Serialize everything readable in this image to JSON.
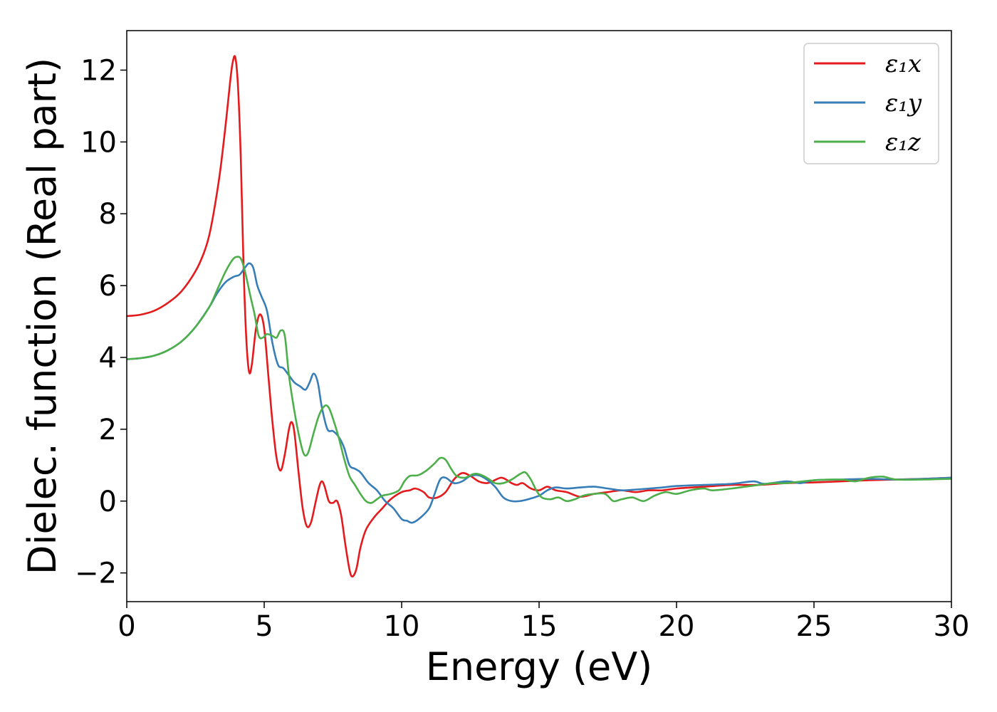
{
  "chart_data": {
    "type": "line",
    "title": "",
    "xlabel": "Energy (eV)",
    "ylabel": "Dielec. function (Real part)",
    "xlim": [
      0,
      30
    ],
    "ylim": [
      -2.8,
      13.1
    ],
    "xticks": [
      0,
      5,
      10,
      15,
      20,
      25,
      30
    ],
    "yticks": [
      -2,
      0,
      2,
      4,
      6,
      8,
      10,
      12
    ],
    "grid": false,
    "legend_position": "top-right",
    "series": [
      {
        "name": "ε₁x",
        "color": "#e41a1c",
        "points": [
          [
            0,
            5.15
          ],
          [
            0.5,
            5.19
          ],
          [
            1.0,
            5.3
          ],
          [
            1.5,
            5.52
          ],
          [
            2.0,
            5.85
          ],
          [
            2.5,
            6.4
          ],
          [
            2.8,
            6.9
          ],
          [
            3.0,
            7.4
          ],
          [
            3.2,
            8.2
          ],
          [
            3.4,
            9.2
          ],
          [
            3.6,
            10.5
          ],
          [
            3.75,
            11.6
          ],
          [
            3.85,
            12.2
          ],
          [
            3.95,
            12.35
          ],
          [
            4.05,
            11.5
          ],
          [
            4.15,
            9.5
          ],
          [
            4.25,
            6.5
          ],
          [
            4.35,
            4.5
          ],
          [
            4.45,
            3.6
          ],
          [
            4.55,
            3.8
          ],
          [
            4.7,
            4.8
          ],
          [
            4.85,
            5.2
          ],
          [
            5.0,
            4.8
          ],
          [
            5.15,
            3.5
          ],
          [
            5.3,
            2.2
          ],
          [
            5.45,
            1.2
          ],
          [
            5.6,
            0.85
          ],
          [
            5.75,
            1.3
          ],
          [
            5.9,
            2.0
          ],
          [
            6.0,
            2.2
          ],
          [
            6.1,
            1.9
          ],
          [
            6.25,
            0.8
          ],
          [
            6.4,
            -0.2
          ],
          [
            6.55,
            -0.7
          ],
          [
            6.7,
            -0.6
          ],
          [
            6.85,
            -0.1
          ],
          [
            7.0,
            0.4
          ],
          [
            7.1,
            0.55
          ],
          [
            7.2,
            0.4
          ],
          [
            7.35,
            0.0
          ],
          [
            7.5,
            -0.05
          ],
          [
            7.65,
            0.0
          ],
          [
            7.8,
            -0.4
          ],
          [
            7.95,
            -1.2
          ],
          [
            8.1,
            -1.9
          ],
          [
            8.2,
            -2.1
          ],
          [
            8.35,
            -1.9
          ],
          [
            8.5,
            -1.3
          ],
          [
            8.7,
            -0.8
          ],
          [
            9.0,
            -0.45
          ],
          [
            9.3,
            -0.2
          ],
          [
            9.6,
            0.05
          ],
          [
            10.0,
            0.25
          ],
          [
            10.3,
            0.3
          ],
          [
            10.5,
            0.35
          ],
          [
            10.8,
            0.25
          ],
          [
            11.0,
            0.1
          ],
          [
            11.3,
            0.1
          ],
          [
            11.6,
            0.25
          ],
          [
            11.9,
            0.6
          ],
          [
            12.2,
            0.78
          ],
          [
            12.5,
            0.7
          ],
          [
            12.8,
            0.55
          ],
          [
            13.1,
            0.5
          ],
          [
            13.3,
            0.55
          ],
          [
            13.6,
            0.65
          ],
          [
            13.8,
            0.6
          ],
          [
            14.0,
            0.5
          ],
          [
            14.2,
            0.45
          ],
          [
            14.4,
            0.5
          ],
          [
            14.7,
            0.35
          ],
          [
            15.0,
            0.3
          ],
          [
            15.3,
            0.4
          ],
          [
            15.6,
            0.3
          ],
          [
            16.0,
            0.25
          ],
          [
            16.5,
            0.12
          ],
          [
            17.0,
            0.2
          ],
          [
            17.5,
            0.25
          ],
          [
            18.0,
            0.3
          ],
          [
            18.5,
            0.25
          ],
          [
            19.0,
            0.3
          ],
          [
            19.5,
            0.3
          ],
          [
            20.0,
            0.35
          ],
          [
            21.0,
            0.4
          ],
          [
            22.0,
            0.45
          ],
          [
            23.0,
            0.45
          ],
          [
            24.0,
            0.5
          ],
          [
            25.0,
            0.52
          ],
          [
            26.0,
            0.55
          ],
          [
            27.0,
            0.58
          ],
          [
            28.0,
            0.6
          ],
          [
            29.0,
            0.62
          ],
          [
            30.0,
            0.65
          ]
        ]
      },
      {
        "name": "ε₁y",
        "color": "#377eb8",
        "points": [
          [
            0,
            3.95
          ],
          [
            0.5,
            3.98
          ],
          [
            1.0,
            4.05
          ],
          [
            1.5,
            4.2
          ],
          [
            2.0,
            4.45
          ],
          [
            2.5,
            4.85
          ],
          [
            3.0,
            5.4
          ],
          [
            3.3,
            5.8
          ],
          [
            3.6,
            6.1
          ],
          [
            3.9,
            6.25
          ],
          [
            4.1,
            6.3
          ],
          [
            4.3,
            6.5
          ],
          [
            4.45,
            6.62
          ],
          [
            4.6,
            6.5
          ],
          [
            4.75,
            6.0
          ],
          [
            4.9,
            5.7
          ],
          [
            5.1,
            5.3
          ],
          [
            5.3,
            4.4
          ],
          [
            5.5,
            3.8
          ],
          [
            5.7,
            3.7
          ],
          [
            5.9,
            3.5
          ],
          [
            6.1,
            3.3
          ],
          [
            6.3,
            3.2
          ],
          [
            6.5,
            3.1
          ],
          [
            6.65,
            3.3
          ],
          [
            6.8,
            3.55
          ],
          [
            6.95,
            3.3
          ],
          [
            7.1,
            2.6
          ],
          [
            7.3,
            2.0
          ],
          [
            7.5,
            1.95
          ],
          [
            7.7,
            1.8
          ],
          [
            7.9,
            1.5
          ],
          [
            8.1,
            1.0
          ],
          [
            8.3,
            0.9
          ],
          [
            8.5,
            0.8
          ],
          [
            8.8,
            0.5
          ],
          [
            9.1,
            0.3
          ],
          [
            9.4,
            0.0
          ],
          [
            9.7,
            -0.2
          ],
          [
            10.0,
            -0.5
          ],
          [
            10.2,
            -0.55
          ],
          [
            10.4,
            -0.6
          ],
          [
            10.7,
            -0.45
          ],
          [
            11.0,
            -0.2
          ],
          [
            11.2,
            0.2
          ],
          [
            11.4,
            0.6
          ],
          [
            11.6,
            0.65
          ],
          [
            11.9,
            0.5
          ],
          [
            12.2,
            0.55
          ],
          [
            12.5,
            0.7
          ],
          [
            12.8,
            0.72
          ],
          [
            13.1,
            0.6
          ],
          [
            13.4,
            0.4
          ],
          [
            13.7,
            0.1
          ],
          [
            14.0,
            0.0
          ],
          [
            14.3,
            0.0
          ],
          [
            14.6,
            0.05
          ],
          [
            15.0,
            0.15
          ],
          [
            15.3,
            0.3
          ],
          [
            15.6,
            0.38
          ],
          [
            16.0,
            0.35
          ],
          [
            16.5,
            0.38
          ],
          [
            17.0,
            0.4
          ],
          [
            17.5,
            0.35
          ],
          [
            18.0,
            0.3
          ],
          [
            18.5,
            0.32
          ],
          [
            19.0,
            0.35
          ],
          [
            19.5,
            0.38
          ],
          [
            20.0,
            0.42
          ],
          [
            21.0,
            0.45
          ],
          [
            22.0,
            0.48
          ],
          [
            22.8,
            0.55
          ],
          [
            23.2,
            0.48
          ],
          [
            24.0,
            0.55
          ],
          [
            24.5,
            0.5
          ],
          [
            25.0,
            0.58
          ],
          [
            26.0,
            0.6
          ],
          [
            27.0,
            0.62
          ],
          [
            28.0,
            0.6
          ],
          [
            29.0,
            0.62
          ],
          [
            30.0,
            0.65
          ]
        ]
      },
      {
        "name": "ε₁z",
        "color": "#4daf4a",
        "points": [
          [
            0,
            3.95
          ],
          [
            0.5,
            3.98
          ],
          [
            1.0,
            4.05
          ],
          [
            1.5,
            4.2
          ],
          [
            2.0,
            4.45
          ],
          [
            2.5,
            4.85
          ],
          [
            3.0,
            5.4
          ],
          [
            3.3,
            5.9
          ],
          [
            3.6,
            6.4
          ],
          [
            3.85,
            6.72
          ],
          [
            4.0,
            6.8
          ],
          [
            4.15,
            6.75
          ],
          [
            4.3,
            6.4
          ],
          [
            4.5,
            5.7
          ],
          [
            4.65,
            5.2
          ],
          [
            4.8,
            4.6
          ],
          [
            4.95,
            4.55
          ],
          [
            5.1,
            4.65
          ],
          [
            5.3,
            4.6
          ],
          [
            5.45,
            4.55
          ],
          [
            5.6,
            4.75
          ],
          [
            5.75,
            4.6
          ],
          [
            5.9,
            3.5
          ],
          [
            6.1,
            2.5
          ],
          [
            6.3,
            1.7
          ],
          [
            6.45,
            1.3
          ],
          [
            6.6,
            1.35
          ],
          [
            6.8,
            1.9
          ],
          [
            7.0,
            2.4
          ],
          [
            7.2,
            2.65
          ],
          [
            7.35,
            2.6
          ],
          [
            7.5,
            2.3
          ],
          [
            7.7,
            1.8
          ],
          [
            7.9,
            1.2
          ],
          [
            8.1,
            0.7
          ],
          [
            8.3,
            0.45
          ],
          [
            8.5,
            0.2
          ],
          [
            8.7,
            0.0
          ],
          [
            8.9,
            -0.05
          ],
          [
            9.1,
            0.05
          ],
          [
            9.3,
            0.15
          ],
          [
            9.6,
            0.2
          ],
          [
            9.9,
            0.3
          ],
          [
            10.1,
            0.55
          ],
          [
            10.3,
            0.7
          ],
          [
            10.6,
            0.72
          ],
          [
            10.9,
            0.85
          ],
          [
            11.2,
            1.05
          ],
          [
            11.4,
            1.2
          ],
          [
            11.6,
            1.15
          ],
          [
            11.8,
            0.9
          ],
          [
            12.0,
            0.7
          ],
          [
            12.3,
            0.65
          ],
          [
            12.6,
            0.75
          ],
          [
            12.8,
            0.75
          ],
          [
            13.1,
            0.65
          ],
          [
            13.4,
            0.5
          ],
          [
            13.7,
            0.5
          ],
          [
            14.0,
            0.6
          ],
          [
            14.3,
            0.75
          ],
          [
            14.5,
            0.8
          ],
          [
            14.7,
            0.6
          ],
          [
            14.9,
            0.3
          ],
          [
            15.1,
            0.1
          ],
          [
            15.4,
            0.05
          ],
          [
            15.7,
            0.1
          ],
          [
            16.0,
            0.0
          ],
          [
            16.3,
            0.05
          ],
          [
            16.6,
            0.15
          ],
          [
            17.0,
            0.2
          ],
          [
            17.4,
            0.2
          ],
          [
            17.7,
            0.0
          ],
          [
            18.0,
            0.05
          ],
          [
            18.4,
            0.1
          ],
          [
            18.8,
            0.0
          ],
          [
            19.2,
            0.15
          ],
          [
            19.6,
            0.25
          ],
          [
            20.0,
            0.2
          ],
          [
            20.5,
            0.3
          ],
          [
            21.0,
            0.35
          ],
          [
            21.3,
            0.3
          ],
          [
            22.0,
            0.35
          ],
          [
            22.5,
            0.4
          ],
          [
            23.0,
            0.45
          ],
          [
            23.5,
            0.5
          ],
          [
            24.0,
            0.5
          ],
          [
            25.0,
            0.58
          ],
          [
            26.0,
            0.6
          ],
          [
            26.5,
            0.55
          ],
          [
            27.0,
            0.65
          ],
          [
            27.5,
            0.68
          ],
          [
            28.0,
            0.6
          ],
          [
            29.0,
            0.6
          ],
          [
            30.0,
            0.62
          ]
        ]
      }
    ]
  }
}
